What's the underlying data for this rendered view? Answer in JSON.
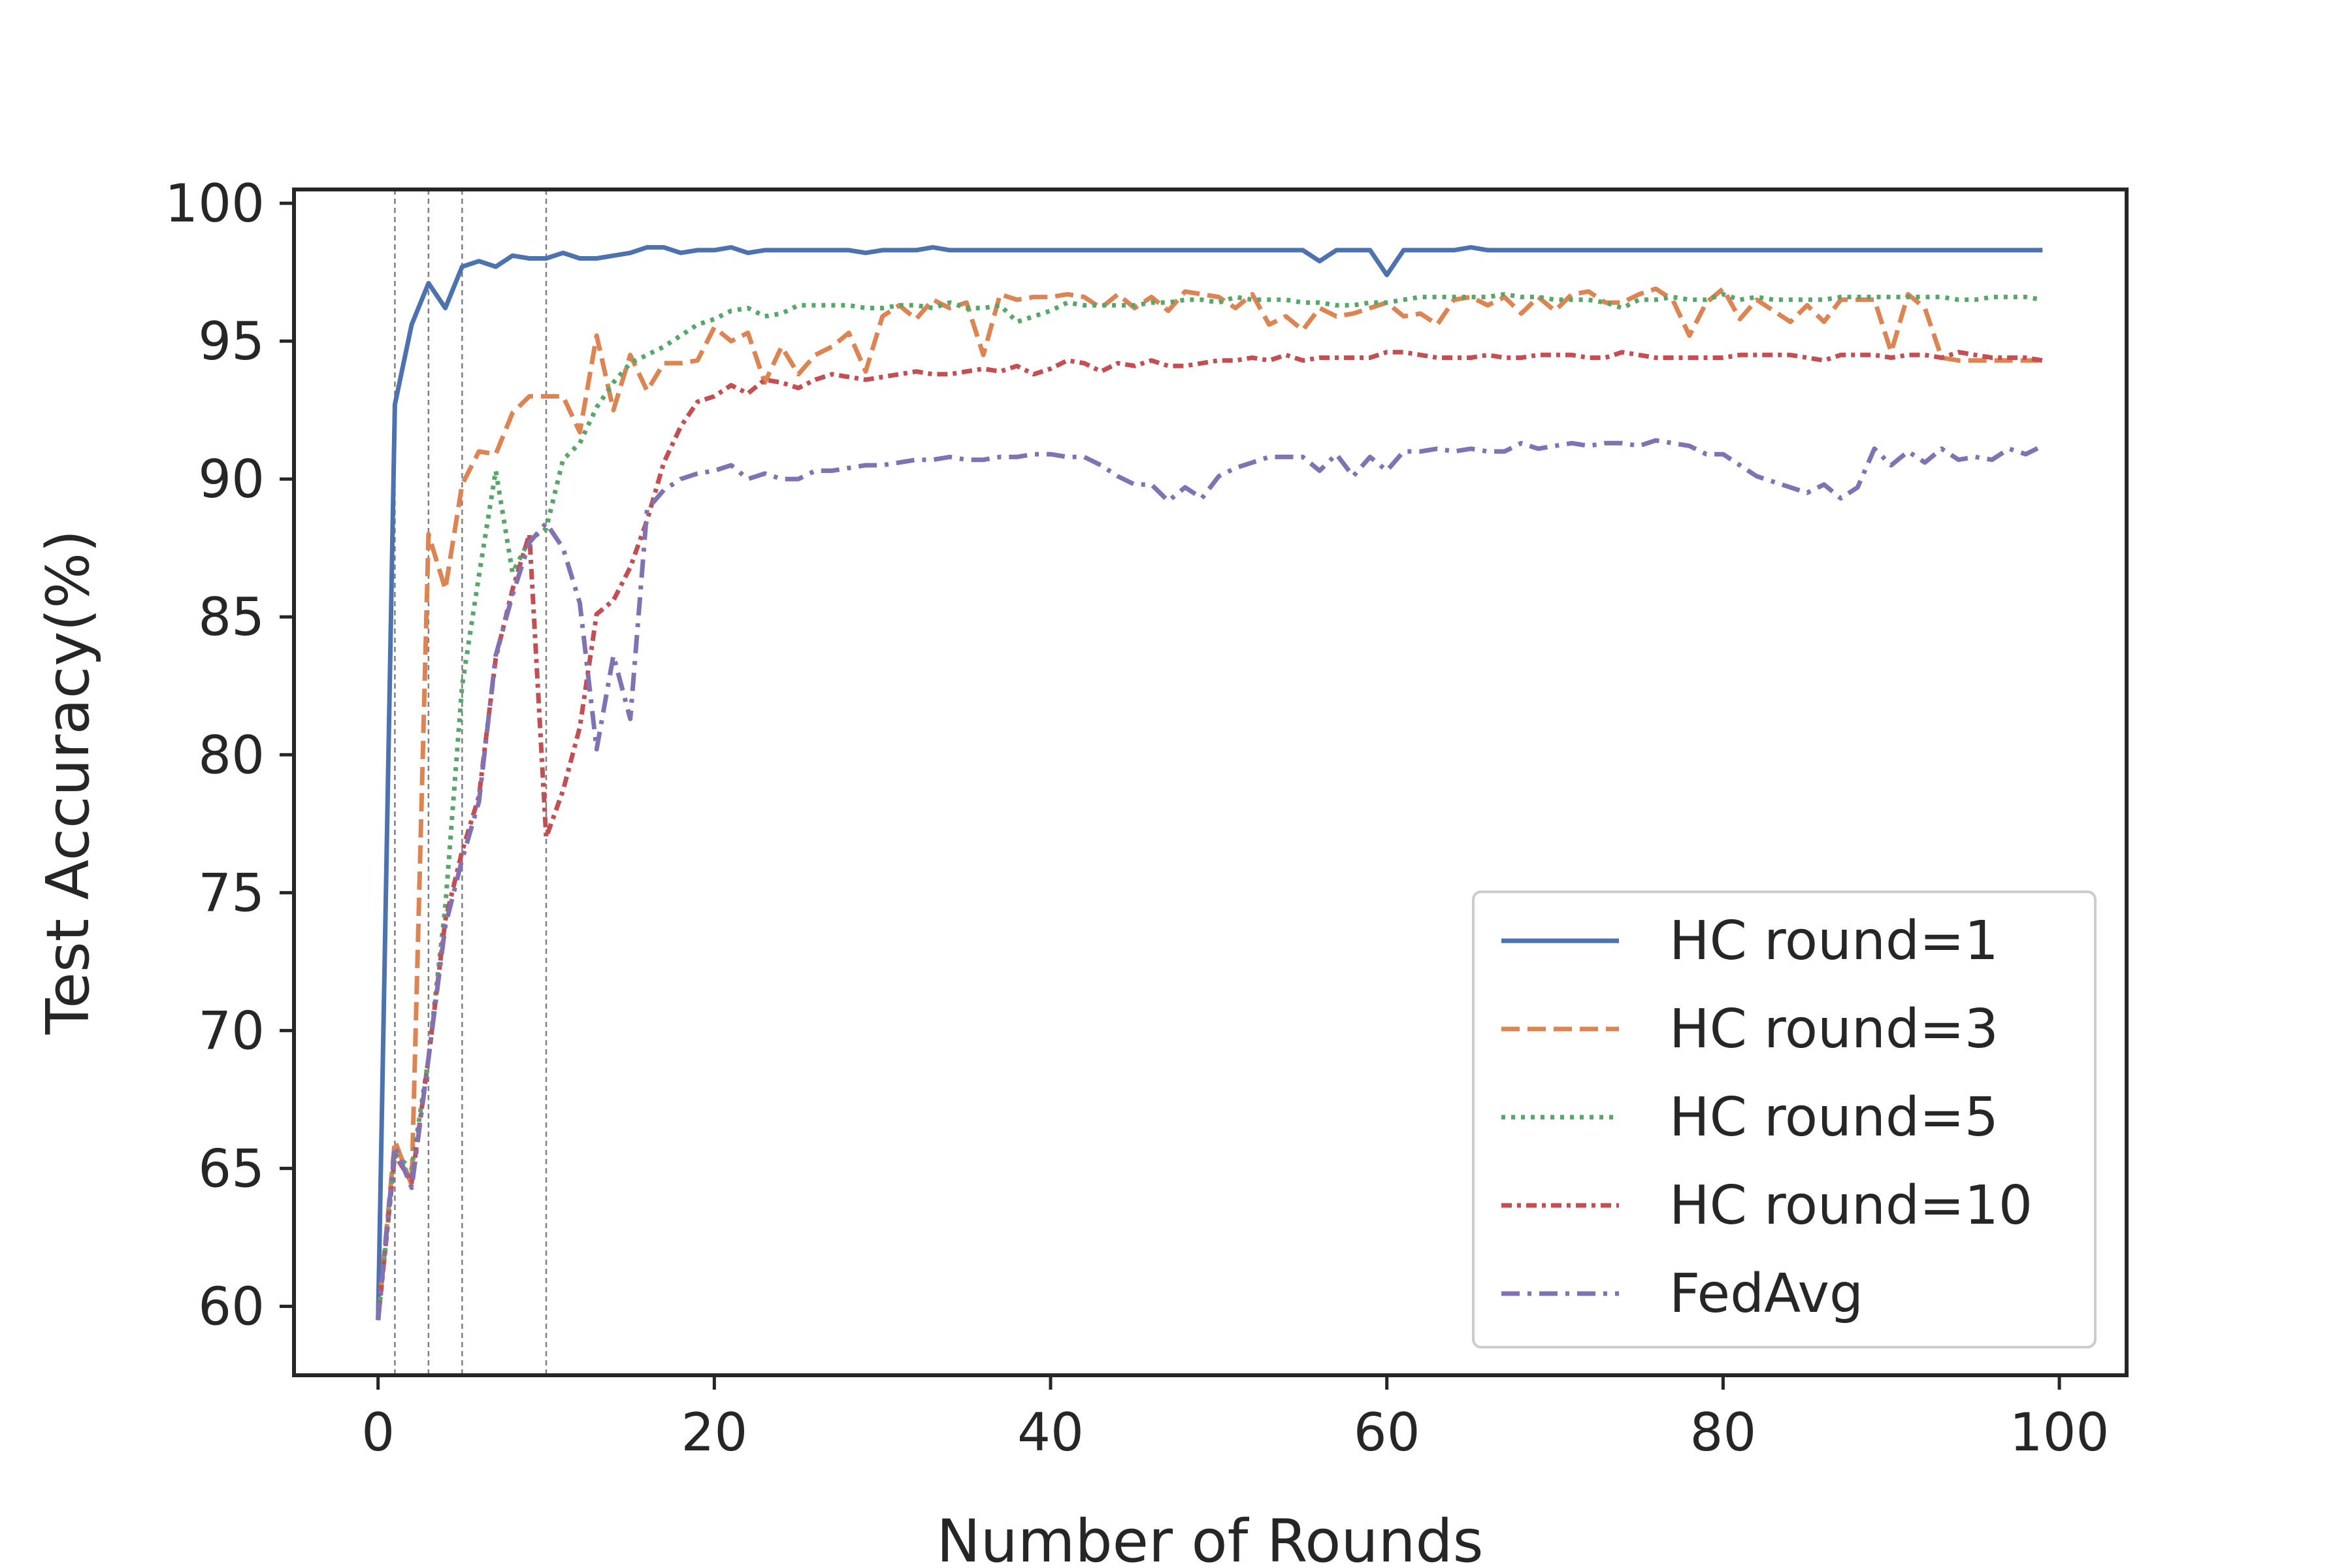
{
  "chart_data": {
    "type": "line",
    "title": "",
    "xlabel": "Number of Rounds",
    "ylabel": "Test Accuracy(%)",
    "xlim": [
      -5,
      104
    ],
    "ylim": [
      57.5,
      100.5
    ],
    "xticks": [
      0,
      20,
      40,
      60,
      80,
      100
    ],
    "yticks": [
      60,
      65,
      70,
      75,
      80,
      85,
      90,
      95,
      100
    ],
    "vlines": [
      1,
      3,
      5,
      10
    ],
    "grid": false,
    "legend_position": "lower-right",
    "series": [
      {
        "name": "HC round=1",
        "color": "#4c72b0",
        "dash": "solid",
        "x_start": 0,
        "values": [
          59.5,
          92.7,
          95.6,
          97.1,
          96.2,
          97.7,
          97.9,
          97.7,
          98.1,
          98.0,
          98.0,
          98.2,
          98.0,
          98.0,
          98.1,
          98.2,
          98.4,
          98.4,
          98.2,
          98.3,
          98.3,
          98.4,
          98.2,
          98.3,
          98.3,
          98.3,
          98.3,
          98.3,
          98.3,
          98.2,
          98.3,
          98.3,
          98.3,
          98.4,
          98.3,
          98.3,
          98.3,
          98.3,
          98.3,
          98.3,
          98.3,
          98.3,
          98.3,
          98.3,
          98.3,
          98.3,
          98.3,
          98.3,
          98.3,
          98.3,
          98.3,
          98.3,
          98.3,
          98.3,
          98.3,
          98.3,
          97.9,
          98.3,
          98.3,
          98.3,
          97.4,
          98.3,
          98.3,
          98.3,
          98.3,
          98.4,
          98.3,
          98.3,
          98.3,
          98.3,
          98.3,
          98.3,
          98.3,
          98.3,
          98.3,
          98.3,
          98.3,
          98.3,
          98.3,
          98.3,
          98.3,
          98.3,
          98.3,
          98.3,
          98.3,
          98.3,
          98.3,
          98.3,
          98.3,
          98.3,
          98.3,
          98.3,
          98.3,
          98.3,
          98.3,
          98.3,
          98.3,
          98.3,
          98.3,
          98.3
        ]
      },
      {
        "name": "HC round=3",
        "color": "#dd8452",
        "dash": "dashed",
        "x_start": 0,
        "values": [
          59.5,
          66.0,
          64.4,
          88.0,
          86.0,
          89.8,
          91.0,
          90.9,
          92.4,
          93.0,
          93.0,
          93.0,
          91.7,
          95.2,
          92.5,
          94.5,
          93.2,
          94.2,
          94.2,
          94.3,
          95.5,
          95.0,
          95.3,
          93.5,
          94.8,
          93.8,
          94.5,
          94.8,
          95.3,
          93.9,
          95.9,
          96.3,
          95.8,
          96.5,
          96.2,
          96.4,
          94.5,
          96.7,
          96.5,
          96.6,
          96.6,
          96.7,
          96.6,
          96.2,
          96.7,
          96.2,
          96.6,
          96.1,
          96.8,
          96.7,
          96.6,
          96.2,
          96.7,
          95.6,
          95.9,
          95.4,
          96.2,
          95.9,
          96.0,
          96.2,
          96.4,
          95.9,
          96.0,
          95.6,
          96.5,
          96.6,
          96.3,
          96.6,
          96.0,
          96.6,
          96.1,
          96.7,
          96.8,
          96.4,
          96.4,
          96.7,
          96.9,
          96.5,
          95.2,
          96.4,
          96.9,
          95.8,
          96.5,
          96.1,
          95.7,
          96.3,
          95.7,
          96.5,
          96.5,
          96.5,
          94.6,
          96.7,
          96.2,
          94.4,
          94.3,
          94.3,
          94.3,
          94.3,
          94.3,
          94.3
        ]
      },
      {
        "name": "HC round=5",
        "color": "#55a868",
        "dash": "dotted",
        "x_start": 0,
        "values": [
          59.5,
          65.5,
          65.0,
          69.0,
          74.5,
          82.5,
          86.5,
          90.3,
          86.6,
          87.8,
          88.2,
          90.7,
          91.3,
          92.6,
          93.5,
          94.2,
          94.5,
          94.8,
          95.2,
          95.6,
          95.8,
          96.1,
          96.2,
          95.9,
          96.0,
          96.3,
          96.3,
          96.3,
          96.3,
          96.2,
          96.2,
          96.3,
          96.3,
          96.2,
          96.4,
          96.2,
          96.2,
          96.3,
          95.7,
          95.9,
          96.1,
          96.4,
          96.3,
          96.3,
          96.3,
          96.3,
          96.4,
          96.4,
          96.5,
          96.5,
          96.4,
          96.6,
          96.5,
          96.5,
          96.5,
          96.4,
          96.4,
          96.3,
          96.3,
          96.4,
          96.4,
          96.5,
          96.6,
          96.6,
          96.6,
          96.6,
          96.6,
          96.7,
          96.6,
          96.6,
          96.5,
          96.5,
          96.5,
          96.4,
          96.2,
          96.5,
          96.5,
          96.6,
          96.5,
          96.5,
          96.7,
          96.5,
          96.6,
          96.5,
          96.5,
          96.5,
          96.5,
          96.6,
          96.6,
          96.6,
          96.6,
          96.6,
          96.6,
          96.6,
          96.5,
          96.5,
          96.6,
          96.6,
          96.6,
          96.5
        ]
      },
      {
        "name": "HC round=10",
        "color": "#c44e52",
        "dash": "dashdot-tight",
        "x_start": 0,
        "values": [
          59.5,
          65.5,
          64.5,
          69.0,
          74.0,
          76.5,
          78.5,
          83.5,
          86.0,
          88.0,
          77.0,
          78.7,
          81.0,
          85.1,
          85.6,
          86.8,
          88.5,
          90.6,
          91.9,
          92.8,
          93.0,
          93.4,
          93.1,
          93.6,
          93.5,
          93.3,
          93.6,
          93.8,
          93.7,
          93.6,
          93.7,
          93.8,
          93.9,
          93.8,
          93.8,
          93.9,
          94.0,
          93.9,
          94.1,
          93.8,
          94.0,
          94.3,
          94.2,
          93.9,
          94.2,
          94.1,
          94.3,
          94.1,
          94.1,
          94.2,
          94.3,
          94.3,
          94.4,
          94.3,
          94.5,
          94.3,
          94.4,
          94.4,
          94.4,
          94.4,
          94.6,
          94.6,
          94.5,
          94.4,
          94.4,
          94.4,
          94.5,
          94.4,
          94.4,
          94.5,
          94.5,
          94.5,
          94.4,
          94.4,
          94.6,
          94.5,
          94.4,
          94.4,
          94.4,
          94.4,
          94.4,
          94.5,
          94.5,
          94.5,
          94.5,
          94.4,
          94.3,
          94.5,
          94.5,
          94.5,
          94.4,
          94.5,
          94.5,
          94.4,
          94.6,
          94.5,
          94.4,
          94.4,
          94.4,
          94.3
        ]
      },
      {
        "name": "FedAvg",
        "color": "#8172b3",
        "dash": "dashdot",
        "x_start": 0,
        "values": [
          59.5,
          65.8,
          64.3,
          69.0,
          73.8,
          76.2,
          78.3,
          83.6,
          85.8,
          87.7,
          88.4,
          87.5,
          85.5,
          80.2,
          83.6,
          81.3,
          88.9,
          89.6,
          90.0,
          90.2,
          90.3,
          90.5,
          90.0,
          90.2,
          90.0,
          90.0,
          90.3,
          90.3,
          90.4,
          90.5,
          90.5,
          90.6,
          90.7,
          90.7,
          90.8,
          90.7,
          90.7,
          90.8,
          90.8,
          90.9,
          90.9,
          90.8,
          90.8,
          90.5,
          90.1,
          89.8,
          89.8,
          89.2,
          89.7,
          89.3,
          90.1,
          90.4,
          90.6,
          90.8,
          90.8,
          90.8,
          90.3,
          90.9,
          90.1,
          90.8,
          90.3,
          91.0,
          91.0,
          91.1,
          91.0,
          91.1,
          91.0,
          91.0,
          91.3,
          91.1,
          91.2,
          91.3,
          91.2,
          91.3,
          91.3,
          91.2,
          91.4,
          91.3,
          91.2,
          90.9,
          90.9,
          90.5,
          90.1,
          89.9,
          89.7,
          89.5,
          89.8,
          89.3,
          89.7,
          91.1,
          90.5,
          91.0,
          90.6,
          91.1,
          90.7,
          90.8,
          90.7,
          91.1,
          90.9,
          91.2
        ]
      }
    ]
  }
}
